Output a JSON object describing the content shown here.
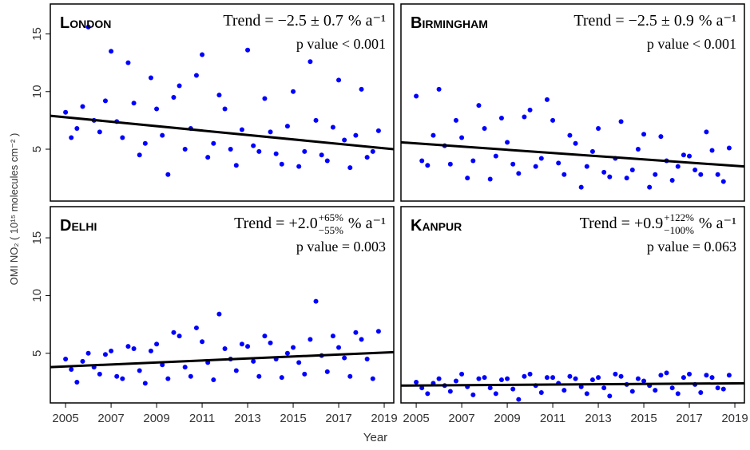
{
  "xlabel": "Year",
  "ylabel": "OMI NO₂ ( 10¹⁵ molecules  cm⁻² )",
  "chart_data": [
    {
      "type": "scatter",
      "title": "London",
      "trend_text": "Trend = −2.5 ± 0.7",
      "trend_unit": "% a⁻¹",
      "p_text": "p value < 0.001",
      "color": "#0000ff",
      "xlim": [
        2004.33,
        2019.42
      ],
      "ylim": [
        0.5,
        17.6
      ],
      "yticks": [
        5,
        10,
        15
      ],
      "trend_line": {
        "x": [
          2004.33,
          2019.42
        ],
        "y": [
          7.9,
          5.0
        ]
      },
      "x": [
        2005,
        2005.25,
        2005.5,
        2005.75,
        2006,
        2006.25,
        2006.5,
        2006.75,
        2007,
        2007.25,
        2007.5,
        2007.75,
        2008,
        2008.25,
        2008.5,
        2008.75,
        2009,
        2009.25,
        2009.5,
        2009.75,
        2010,
        2010.25,
        2010.5,
        2010.75,
        2011,
        2011.25,
        2011.5,
        2011.75,
        2012,
        2012.25,
        2012.5,
        2012.75,
        2013,
        2013.25,
        2013.5,
        2013.75,
        2014,
        2014.25,
        2014.5,
        2014.75,
        2015,
        2015.25,
        2015.5,
        2015.75,
        2016,
        2016.25,
        2016.5,
        2016.75,
        2017,
        2017.25,
        2017.5,
        2017.75,
        2018,
        2018.25,
        2018.5,
        2018.75
      ],
      "values": [
        8.2,
        6.0,
        6.8,
        8.7,
        15.6,
        7.5,
        6.5,
        9.2,
        13.5,
        7.4,
        6.0,
        12.5,
        9.0,
        4.5,
        5.5,
        11.2,
        8.5,
        6.2,
        2.8,
        9.5,
        10.5,
        5.0,
        6.8,
        11.4,
        13.2,
        4.3,
        5.5,
        9.7,
        8.5,
        5.0,
        3.6,
        6.7,
        13.6,
        5.3,
        4.8,
        9.4,
        6.5,
        4.6,
        3.7,
        7.0,
        10.0,
        3.5,
        4.8,
        12.6,
        7.5,
        4.5,
        4.0,
        6.9,
        11.0,
        5.8,
        3.4,
        6.2,
        10.2,
        4.3,
        4.8,
        6.6
      ]
    },
    {
      "type": "scatter",
      "title": "Birmingham",
      "trend_text": "Trend = −2.5 ± 0.9",
      "trend_unit": "% a⁻¹",
      "p_text": "p value < 0.001",
      "color": "#0000ff",
      "xlim": [
        2004.33,
        2019.42
      ],
      "ylim": [
        0.5,
        17.6
      ],
      "trend_line": {
        "x": [
          2004.33,
          2019.42
        ],
        "y": [
          5.6,
          3.5
        ]
      },
      "x": [
        2005,
        2005.25,
        2005.5,
        2005.75,
        2006,
        2006.25,
        2006.5,
        2006.75,
        2007,
        2007.25,
        2007.5,
        2007.75,
        2008,
        2008.25,
        2008.5,
        2008.75,
        2009,
        2009.25,
        2009.5,
        2009.75,
        2010,
        2010.25,
        2010.5,
        2010.75,
        2011,
        2011.25,
        2011.5,
        2011.75,
        2012,
        2012.25,
        2012.5,
        2012.75,
        2013,
        2013.25,
        2013.5,
        2013.75,
        2014,
        2014.25,
        2014.5,
        2014.75,
        2015,
        2015.25,
        2015.5,
        2015.75,
        2016,
        2016.25,
        2016.5,
        2016.75,
        2017,
        2017.25,
        2017.5,
        2017.75,
        2018,
        2018.25,
        2018.5,
        2018.75
      ],
      "values": [
        9.6,
        4.0,
        3.6,
        6.2,
        10.2,
        5.3,
        3.7,
        7.5,
        6.0,
        2.5,
        4.0,
        8.8,
        6.8,
        2.4,
        4.4,
        7.7,
        5.6,
        3.7,
        2.9,
        7.8,
        8.4,
        3.5,
        4.2,
        9.3,
        7.5,
        3.8,
        2.8,
        6.2,
        5.5,
        1.7,
        3.5,
        4.8,
        6.8,
        3.0,
        2.6,
        4.2,
        7.4,
        2.5,
        3.2,
        5.0,
        6.3,
        1.7,
        2.8,
        6.1,
        4.0,
        2.3,
        3.5,
        4.5,
        4.4,
        3.2,
        2.8,
        6.5,
        4.9,
        2.8,
        2.2,
        5.1
      ]
    },
    {
      "type": "scatter",
      "title": "Delhi",
      "trend_text": "Trend = +2.0",
      "trend_upper": "+65%",
      "trend_lower": "−55%",
      "trend_unit": "% a⁻¹",
      "p_text": "p value = 0.003",
      "color": "#0000ff",
      "xlim": [
        2004.33,
        2019.42
      ],
      "ylim": [
        0.7,
        17.7
      ],
      "yticks": [
        5,
        10,
        15
      ],
      "xticks": [
        2005,
        2007,
        2009,
        2011,
        2013,
        2015,
        2017,
        2019
      ],
      "trend_line": {
        "x": [
          2004.33,
          2019.42
        ],
        "y": [
          3.8,
          5.1
        ]
      },
      "x": [
        2005,
        2005.25,
        2005.5,
        2005.75,
        2006,
        2006.25,
        2006.5,
        2006.75,
        2007,
        2007.25,
        2007.5,
        2007.75,
        2008,
        2008.25,
        2008.5,
        2008.75,
        2009,
        2009.25,
        2009.5,
        2009.75,
        2010,
        2010.25,
        2010.5,
        2010.75,
        2011,
        2011.25,
        2011.5,
        2011.75,
        2012,
        2012.25,
        2012.5,
        2012.75,
        2013,
        2013.25,
        2013.5,
        2013.75,
        2014,
        2014.25,
        2014.5,
        2014.75,
        2015,
        2015.25,
        2015.5,
        2015.75,
        2016,
        2016.25,
        2016.5,
        2016.75,
        2017,
        2017.25,
        2017.5,
        2017.75,
        2018,
        2018.25,
        2018.5,
        2018.75
      ],
      "values": [
        4.5,
        3.6,
        2.5,
        4.3,
        5.0,
        3.8,
        3.2,
        4.9,
        5.2,
        3.0,
        2.8,
        5.6,
        5.4,
        3.5,
        2.4,
        5.2,
        5.8,
        4.0,
        2.8,
        6.8,
        6.5,
        3.8,
        3.0,
        7.2,
        6.0,
        4.2,
        2.7,
        8.4,
        5.4,
        4.5,
        3.5,
        5.8,
        5.6,
        4.3,
        3.0,
        6.5,
        5.9,
        4.5,
        2.9,
        5.0,
        5.5,
        4.2,
        3.2,
        6.2,
        9.5,
        4.8,
        3.4,
        6.5,
        5.5,
        4.6,
        3.0,
        6.8,
        6.2,
        4.5,
        2.8,
        6.9
      ]
    },
    {
      "type": "scatter",
      "title": "Kanpur",
      "trend_text": "Trend = +0.9",
      "trend_upper": "+122%",
      "trend_lower": "−100%",
      "trend_unit": "% a⁻¹",
      "p_text": "p value = 0.063",
      "color": "#0000ff",
      "xlim": [
        2004.33,
        2019.42
      ],
      "ylim": [
        0.7,
        17.7
      ],
      "xticks": [
        2005,
        2007,
        2009,
        2011,
        2013,
        2015,
        2017,
        2019
      ],
      "trend_line": {
        "x": [
          2004.33,
          2019.42
        ],
        "y": [
          2.2,
          2.4
        ]
      },
      "x": [
        2005,
        2005.25,
        2005.5,
        2005.75,
        2006,
        2006.25,
        2006.5,
        2006.75,
        2007,
        2007.25,
        2007.5,
        2007.75,
        2008,
        2008.25,
        2008.5,
        2008.75,
        2009,
        2009.25,
        2009.5,
        2009.75,
        2010,
        2010.25,
        2010.5,
        2010.75,
        2011,
        2011.25,
        2011.5,
        2011.75,
        2012,
        2012.25,
        2012.5,
        2012.75,
        2013,
        2013.25,
        2013.5,
        2013.75,
        2014,
        2014.25,
        2014.5,
        2014.75,
        2015,
        2015.25,
        2015.5,
        2015.75,
        2016,
        2016.25,
        2016.5,
        2016.75,
        2017,
        2017.25,
        2017.5,
        2017.75,
        2018,
        2018.25,
        2018.5,
        2018.75
      ],
      "values": [
        2.5,
        2.0,
        1.5,
        2.4,
        2.8,
        2.2,
        1.7,
        2.6,
        3.2,
        2.1,
        1.4,
        2.8,
        2.9,
        2.0,
        1.5,
        2.7,
        2.8,
        1.9,
        1.0,
        3.0,
        3.2,
        2.2,
        1.6,
        2.9,
        2.9,
        2.4,
        1.8,
        3.0,
        2.8,
        2.1,
        1.5,
        2.7,
        2.9,
        2.0,
        1.3,
        3.2,
        3.0,
        2.3,
        1.7,
        2.8,
        2.6,
        2.2,
        1.8,
        3.1,
        3.3,
        2.0,
        1.5,
        2.9,
        3.2,
        2.3,
        1.6,
        3.1,
        2.9,
        2.0,
        1.9,
        3.1
      ]
    }
  ]
}
